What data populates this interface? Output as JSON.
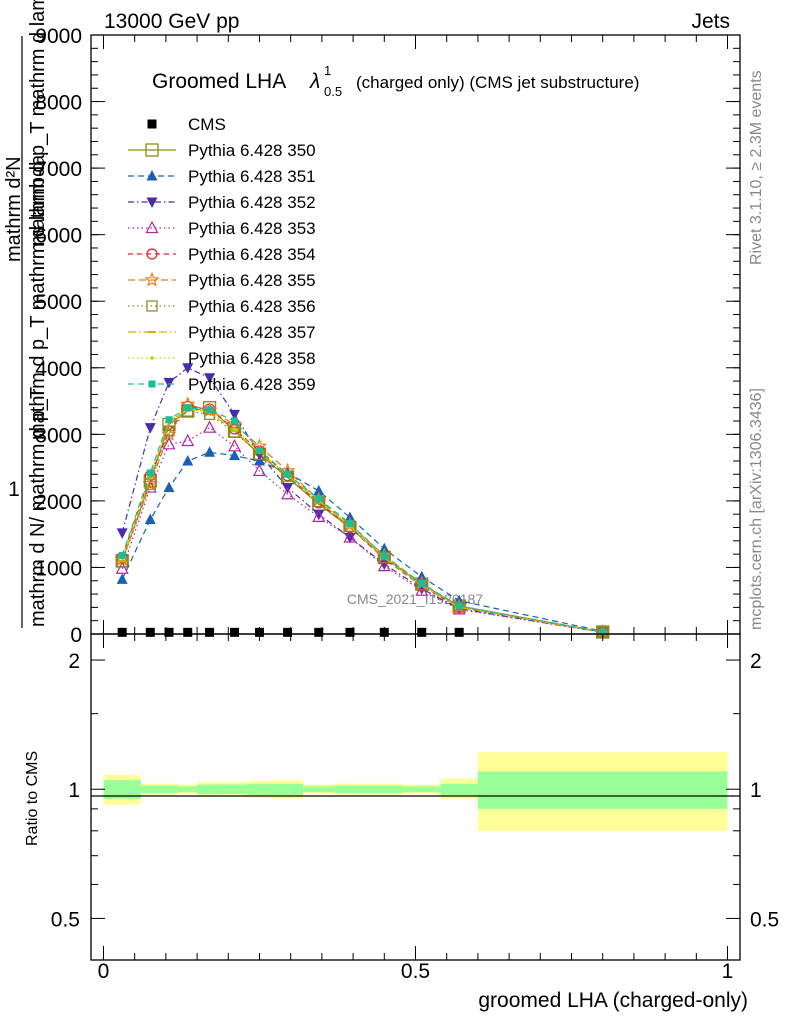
{
  "header": {
    "left": "13000 GeV pp",
    "right": "Jets",
    "plot_title": "Groomed LHA",
    "plot_title_sup": "1",
    "plot_title_sub": "0.5",
    "plot_title_suffix": "(charged only) (CMS jet substructure)",
    "watermark": "CMS_2021_I1920187"
  },
  "side_labels": {
    "rivet": "Rivet 3.1.10, ≥ 2.3M events",
    "mcplots": "mcplots.cern.ch [arXiv:1306.3436]"
  },
  "y_axis_label": {
    "one": "1",
    "denominator": "mathrm d N/ mathrm d p_T",
    "top_1": "mathrm d²N",
    "top_2": "mathrm d p_T mathrm d lambda",
    "bottom": "mathrm d p_T mathrm d lambda"
  },
  "ratio_axis_label": "Ratio to CMS",
  "x_axis_label": "groomed LHA (charged-only)",
  "chart_data": {
    "type": "line",
    "title": "Groomed LHA λ^1_0.5 (charged only) (CMS jet substructure)",
    "xlabel": "groomed LHA (charged-only)",
    "ylabel": "1/dN/dpT d²N/dpT dλ",
    "xlim": [
      -0.02,
      1.02
    ],
    "ylim": [
      0,
      9000
    ],
    "ratio_ylim": [
      0.4,
      2.3
    ],
    "x_ticks": [
      {
        "v": 0,
        "label": "0"
      },
      {
        "v": 0.5,
        "label": "0.5"
      },
      {
        "v": 1,
        "label": "1"
      }
    ],
    "y_ticks": [
      {
        "v": 0,
        "label": "0"
      },
      {
        "v": 1000,
        "label": "1000"
      },
      {
        "v": 2000,
        "label": "2000"
      },
      {
        "v": 3000,
        "label": "3000"
      },
      {
        "v": 4000,
        "label": "4000"
      },
      {
        "v": 5000,
        "label": "5000"
      },
      {
        "v": 6000,
        "label": "6000"
      },
      {
        "v": 7000,
        "label": "7000"
      },
      {
        "v": 8000,
        "label": "8000"
      },
      {
        "v": 9000,
        "label": "9000"
      }
    ],
    "ratio_ticks": [
      {
        "v": 0.5,
        "label": "0.5"
      },
      {
        "v": 1,
        "label": "1"
      },
      {
        "v": 2,
        "label": "2"
      }
    ],
    "x": [
      0.03,
      0.075,
      0.105,
      0.135,
      0.17,
      0.21,
      0.25,
      0.295,
      0.345,
      0.395,
      0.45,
      0.51,
      0.57,
      0.8
    ],
    "data_series": {
      "name": "CMS",
      "values": [
        25,
        25,
        25,
        25,
        25,
        25,
        25,
        25,
        25,
        25,
        25,
        25,
        25,
        null
      ]
    },
    "series": [
      {
        "name": "Pythia 6.428 350",
        "color": "#8a8a1a",
        "dash": "",
        "marker": "square-open",
        "values": [
          1100,
          2300,
          3150,
          3350,
          3400,
          3050,
          2700,
          2350,
          1950,
          1600,
          1150,
          750,
          420,
          30
        ]
      },
      {
        "name": "Pythia 6.428 351",
        "color": "#1a5fb4",
        "dash": "6,4",
        "marker": "triangle-up-filled",
        "values": [
          820,
          1720,
          2200,
          2600,
          2730,
          2680,
          2600,
          2420,
          2150,
          1750,
          1280,
          860,
          500,
          40
        ]
      },
      {
        "name": "Pythia 6.428 352",
        "color": "#4a2bb0",
        "dash": "6,3,1.5,3",
        "marker": "triangle-down-filled",
        "values": [
          1520,
          3100,
          3780,
          4000,
          3850,
          3300,
          2700,
          2200,
          1800,
          1450,
          1050,
          680,
          380,
          25
        ]
      },
      {
        "name": "Pythia 6.428 353",
        "color": "#b0259f",
        "dash": "1.5,3",
        "marker": "triangle-up-open",
        "values": [
          980,
          2200,
          2850,
          2900,
          3100,
          2820,
          2450,
          2100,
          1760,
          1450,
          1020,
          650,
          370,
          25
        ]
      },
      {
        "name": "Pythia 6.428 354",
        "color": "#e0202a",
        "dash": "5,4",
        "marker": "circle-open",
        "values": [
          1150,
          2380,
          3050,
          3420,
          3380,
          3080,
          2750,
          2380,
          1970,
          1600,
          1130,
          720,
          400,
          28
        ]
      },
      {
        "name": "Pythia 6.428 355",
        "color": "#f07818",
        "dash": "7,4",
        "marker": "star-open",
        "values": [
          1120,
          2260,
          3000,
          3450,
          3360,
          3150,
          2820,
          2450,
          2020,
          1640,
          1180,
          760,
          410,
          30
        ]
      },
      {
        "name": "Pythia 6.428 356",
        "color": "#7e8a22",
        "dash": "1.5,3",
        "marker": "square-open-small",
        "values": [
          1080,
          2250,
          3050,
          3350,
          3300,
          3030,
          2700,
          2370,
          1990,
          1620,
          1150,
          740,
          410,
          28
        ]
      },
      {
        "name": "Pythia 6.428 357",
        "color": "#d6b000",
        "dash": "8,3,1.5,3",
        "marker": "dash",
        "values": [
          1100,
          2340,
          3180,
          3380,
          3330,
          3050,
          2720,
          2380,
          2000,
          1610,
          1140,
          730,
          400,
          28
        ]
      },
      {
        "name": "Pythia 6.428 358",
        "color": "#b6d600",
        "dash": "1.5,3",
        "marker": "dot",
        "values": [
          1150,
          2400,
          3200,
          3360,
          3350,
          3080,
          2740,
          2390,
          2010,
          1630,
          1150,
          740,
          410,
          30
        ]
      },
      {
        "name": "Pythia 6.428 359",
        "color": "#18c09a",
        "dash": "6,4",
        "marker": "square-filled",
        "values": [
          1180,
          2420,
          3220,
          3400,
          3370,
          3200,
          2760,
          2400,
          2030,
          1660,
          1170,
          760,
          420,
          32
        ]
      }
    ],
    "ratio_bands": {
      "edges": [
        0,
        0.06,
        0.09,
        0.12,
        0.15,
        0.19,
        0.23,
        0.27,
        0.32,
        0.37,
        0.42,
        0.48,
        0.54,
        0.6,
        1.0
      ],
      "inner_lo": [
        0.95,
        0.98,
        0.98,
        0.985,
        0.975,
        0.975,
        0.97,
        0.97,
        0.985,
        0.98,
        0.98,
        0.985,
        0.97,
        0.9
      ],
      "inner_hi": [
        1.05,
        1.02,
        1.02,
        1.015,
        1.025,
        1.025,
        1.03,
        1.03,
        1.015,
        1.02,
        1.02,
        1.015,
        1.03,
        1.1
      ],
      "outer_lo": [
        0.92,
        0.97,
        0.97,
        0.975,
        0.96,
        0.96,
        0.955,
        0.95,
        0.975,
        0.97,
        0.97,
        0.975,
        0.95,
        0.8
      ],
      "outer_hi": [
        1.08,
        1.03,
        1.03,
        1.025,
        1.04,
        1.04,
        1.045,
        1.05,
        1.025,
        1.03,
        1.03,
        1.025,
        1.06,
        1.22
      ]
    }
  }
}
